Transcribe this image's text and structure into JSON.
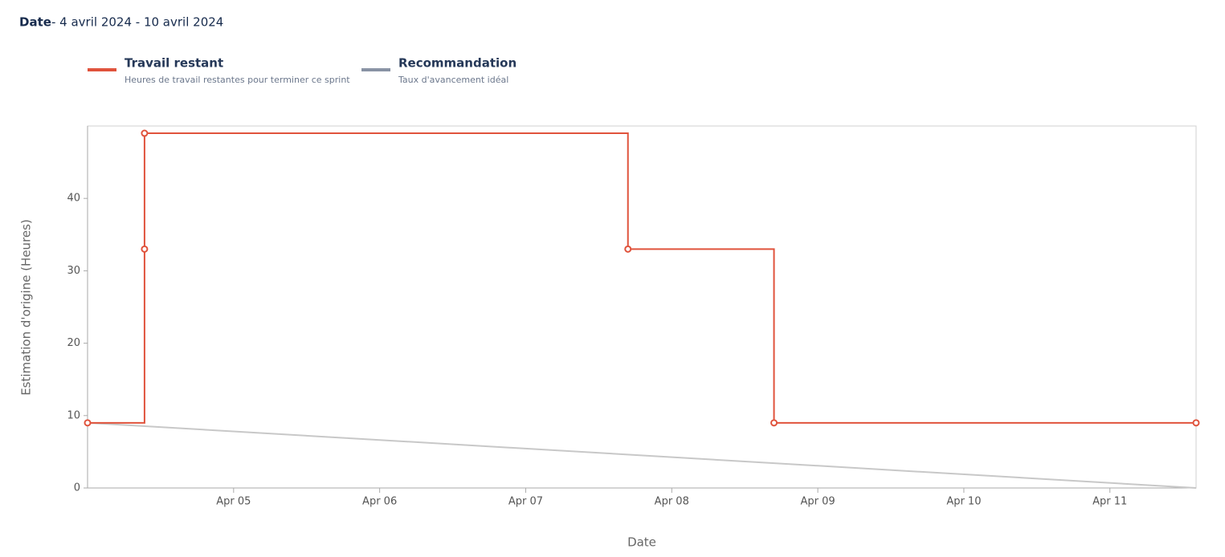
{
  "header": {
    "label": "Date",
    "range": "- 4 avril 2024 - 10 avril 2024"
  },
  "chart_data": {
    "type": "line",
    "x_label": "Date",
    "y_label": "Estimation d'origine (Heures)",
    "xlim": [
      4,
      11.59
    ],
    "xticks": [
      {
        "value": 5,
        "label": "Apr 05"
      },
      {
        "value": 6,
        "label": "Apr 06"
      },
      {
        "value": 7,
        "label": "Apr 07"
      },
      {
        "value": 8,
        "label": "Apr 08"
      },
      {
        "value": 9,
        "label": "Apr 09"
      },
      {
        "value": 10,
        "label": "Apr 10"
      },
      {
        "value": 11,
        "label": "Apr 11"
      }
    ],
    "ylim": [
      0,
      50
    ],
    "yticks": [
      0,
      10,
      20,
      30,
      40
    ],
    "series": [
      {
        "name": "Travail restant",
        "description": "Heures de travail restantes pour terminer ce sprint",
        "color": "#e0533c",
        "legend_color": "#e0533c",
        "step": "after",
        "markers": true,
        "x": [
          4,
          4.39,
          4.39,
          7.7,
          8.7,
          11.59
        ],
        "values": [
          9,
          33,
          49,
          33,
          9,
          9
        ]
      },
      {
        "name": "Recommandation",
        "description": "Taux d'avancement idéal",
        "color": "#c8c8c8",
        "legend_color": "#8993a4",
        "step": "none",
        "markers": false,
        "x": [
          4,
          11.59
        ],
        "values": [
          9,
          0
        ]
      }
    ]
  }
}
